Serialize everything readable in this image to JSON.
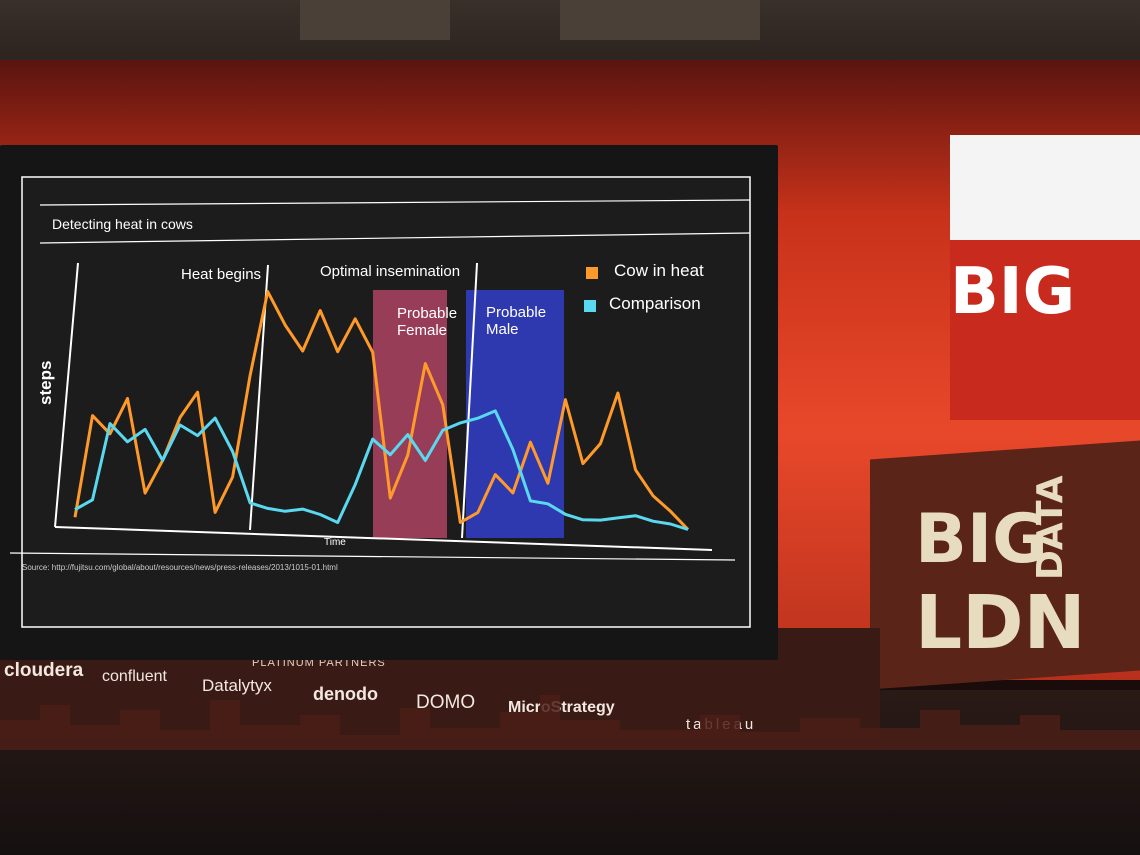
{
  "slide": {
    "title": "Detecting heat in cows",
    "annotations": {
      "heat_begins": "Heat begins",
      "optimal_insemination": "Optimal insemination",
      "probable_female_1": "Probable",
      "probable_female_2": "Female",
      "probable_male_1": "Probable",
      "probable_male_2": "Male"
    },
    "source": "Source: http://fujitsu.com/global/about/resources/news/press-releases/2013/1015-01.html"
  },
  "chart_data": {
    "type": "line",
    "xlabel": "Time",
    "ylabel": "steps",
    "grid": false,
    "legend_position": "top-right",
    "series": [
      {
        "name": "Cow in heat",
        "color": "#ff9a2a",
        "values": [
          0.05,
          0.45,
          0.38,
          0.52,
          0.15,
          0.28,
          0.45,
          0.55,
          0.08,
          0.22,
          0.62,
          0.95,
          0.82,
          0.72,
          0.88,
          0.72,
          0.85,
          0.72,
          0.15,
          0.32,
          0.68,
          0.52,
          0.06,
          0.1,
          0.25,
          0.18,
          0.38,
          0.22,
          0.55,
          0.3,
          0.38,
          0.58,
          0.28,
          0.18,
          0.12,
          0.05
        ]
      },
      {
        "name": "Comparison",
        "color": "#5ad8f0",
        "values": [
          0.08,
          0.12,
          0.42,
          0.35,
          0.4,
          0.28,
          0.42,
          0.38,
          0.45,
          0.32,
          0.12,
          0.1,
          0.09,
          0.1,
          0.08,
          0.05,
          0.2,
          0.38,
          0.32,
          0.4,
          0.3,
          0.42,
          0.45,
          0.47,
          0.5,
          0.35,
          0.15,
          0.14,
          0.1,
          0.08,
          0.08,
          0.09,
          0.1,
          0.08,
          0.07,
          0.05
        ]
      }
    ]
  },
  "legend": [
    {
      "label": "Cow in heat",
      "color": "#ff9a2a"
    },
    {
      "label": "Comparison",
      "color": "#5ad8f0"
    }
  ],
  "venue": {
    "partners_title": "PLATINUM PARTNERS",
    "partners": [
      "cloudera",
      "confluent",
      "Datalytyx",
      "denodo",
      "DOMO",
      "MicroStrategy",
      "tableau"
    ],
    "event_logo_1": "BIG",
    "event_logo_2": "DATA",
    "event_logo_3": "LDN"
  }
}
